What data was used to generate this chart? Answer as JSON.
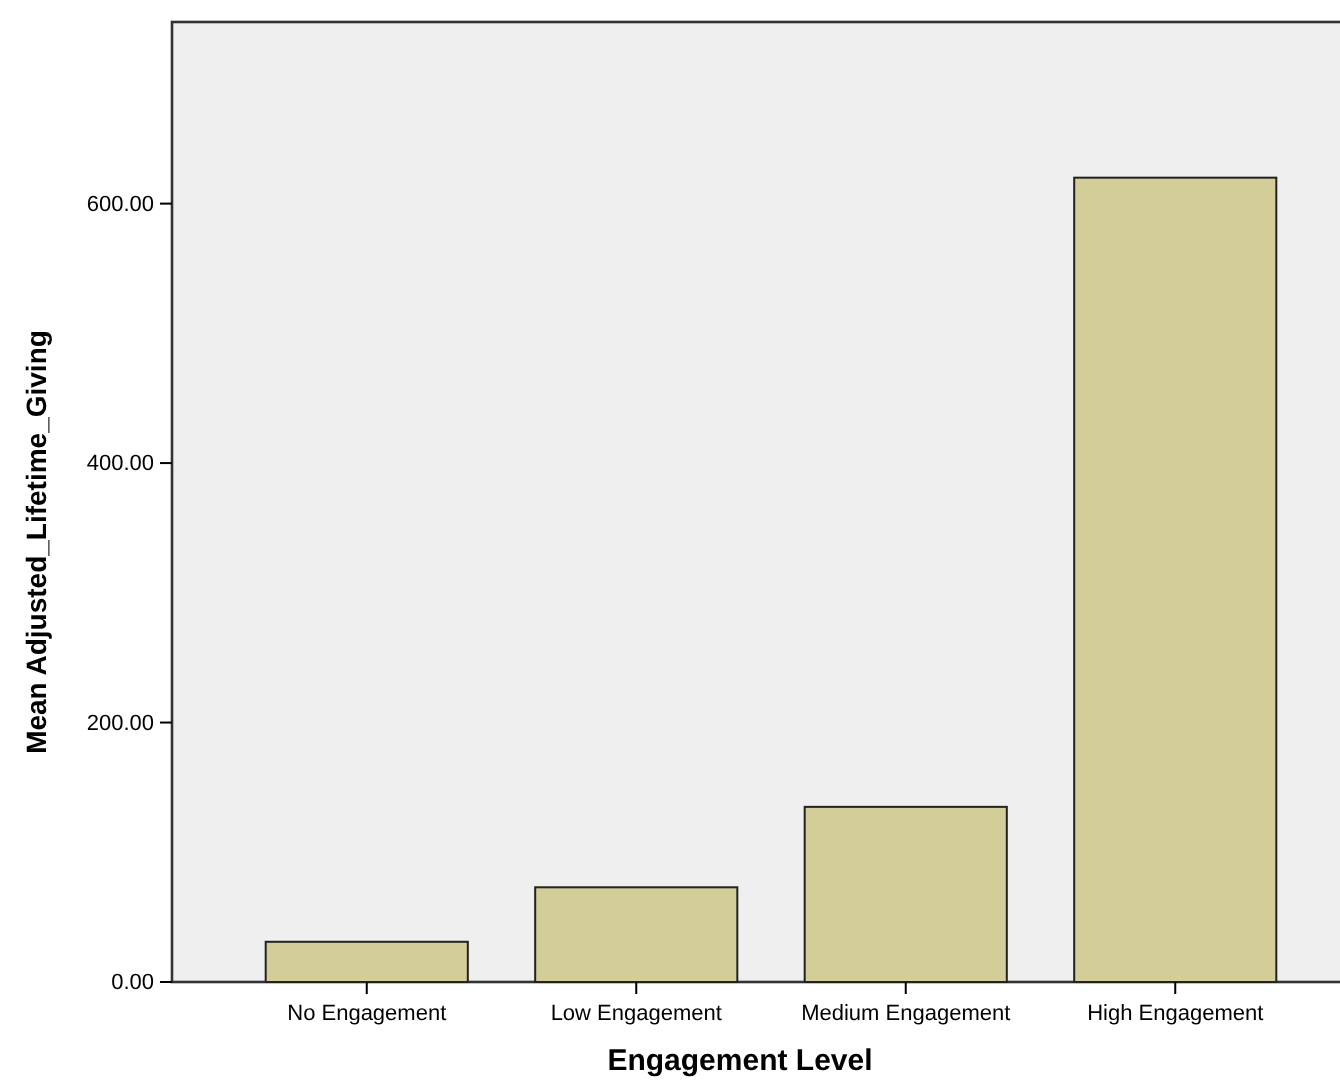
{
  "chart_data": {
    "type": "bar",
    "xlabel": "Engagement Level",
    "ylabel": "Mean Adjusted_Lifetime_Giving",
    "categories": [
      "No Engagement",
      "Low Engagement",
      "Medium Engagement",
      "High Engagement"
    ],
    "values": [
      31,
      73,
      135,
      620
    ],
    "color": "#d3cd97",
    "ylim": [
      0,
      740
    ],
    "yticks": [
      {
        "value": 0,
        "label": "0.00"
      },
      {
        "value": 200,
        "label": "200.00"
      },
      {
        "value": 400,
        "label": "400.00"
      },
      {
        "value": 600,
        "label": "600.00"
      }
    ],
    "grid": false
  }
}
